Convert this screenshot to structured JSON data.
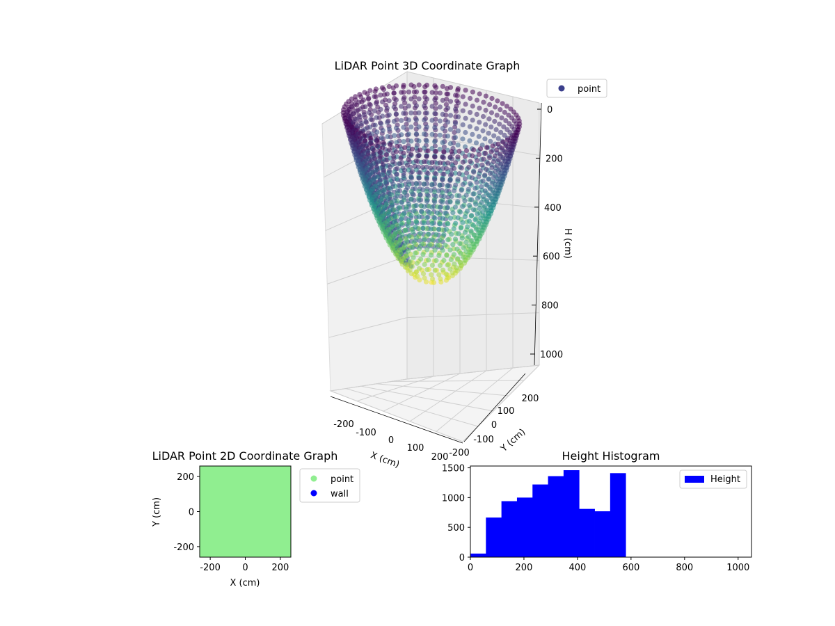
{
  "figure": {
    "panels": {
      "scatter3d": "LiDAR Point 3D Coordinate Graph",
      "scatter2d": "LiDAR Point 2D Coordinate Graph",
      "histogram": "Height Histogram"
    }
  },
  "colors": {
    "point_2d": "#90ee90",
    "wall": "#0000ff",
    "hist_bar": "#0000ff",
    "legend_point_3d": "#3b3f8c",
    "colormap": [
      "#440154",
      "#3b528b",
      "#21918c",
      "#5ec962",
      "#fde725"
    ]
  },
  "chart_data": [
    {
      "type": "scatter",
      "projection": "3d",
      "title": "LiDAR Point 3D Coordinate Graph",
      "xlabel": "X (cm)",
      "ylabel": "Y (cm)",
      "zlabel": "H (cm)",
      "x_ticks": [
        "-200",
        "-100",
        "0",
        "100",
        "200"
      ],
      "y_ticks": [
        "-200",
        "-100",
        "0",
        "100",
        "200"
      ],
      "z_ticks": [
        "0",
        "200",
        "400",
        "600",
        "800",
        "1000"
      ],
      "xlim": [
        -250,
        250
      ],
      "ylim": [
        -250,
        250
      ],
      "zlim": [
        1000,
        0
      ],
      "z_inverted": true,
      "colormap": "viridis",
      "legend": {
        "position": "top-right",
        "entries": [
          "point"
        ]
      },
      "series": [
        {
          "name": "point",
          "shape": "bowl",
          "radius_cm": 260,
          "height_range_cm": [
            0,
            590
          ],
          "description_values": {
            "rim_height": 0,
            "bottom_height": 590
          }
        }
      ]
    },
    {
      "type": "scatter",
      "title": "LiDAR Point 2D Coordinate Graph",
      "xlabel": "X (cm)",
      "ylabel": "Y (cm)",
      "x_ticks": [
        "-200",
        "0",
        "200"
      ],
      "y_ticks": [
        "200",
        "0",
        "-200"
      ],
      "xlim": [
        -260,
        260
      ],
      "ylim": [
        -260,
        260
      ],
      "legend": {
        "position": "right",
        "entries": [
          "point",
          "wall"
        ]
      },
      "series": [
        {
          "name": "point",
          "color": "#90ee90",
          "fill_extent": [
            -260,
            260,
            -260,
            260
          ]
        },
        {
          "name": "wall",
          "color": "#0000ff",
          "points": []
        }
      ]
    },
    {
      "type": "bar",
      "subtype": "histogram",
      "title": "Height Histogram",
      "legend": {
        "position": "top-right",
        "entries": [
          "Height"
        ]
      },
      "x_ticks": [
        "0",
        "200",
        "400",
        "600",
        "800",
        "1000"
      ],
      "y_ticks": [
        "0",
        "500",
        "1000",
        "1500"
      ],
      "xlim": [
        0,
        1050
      ],
      "ylim": [
        0,
        1530
      ],
      "bins": [
        {
          "start": 0,
          "end": 58,
          "value": 60
        },
        {
          "start": 58,
          "end": 116,
          "value": 665
        },
        {
          "start": 116,
          "end": 174,
          "value": 940
        },
        {
          "start": 174,
          "end": 232,
          "value": 1000
        },
        {
          "start": 232,
          "end": 290,
          "value": 1220
        },
        {
          "start": 290,
          "end": 348,
          "value": 1360
        },
        {
          "start": 348,
          "end": 406,
          "value": 1460
        },
        {
          "start": 406,
          "end": 464,
          "value": 810
        },
        {
          "start": 464,
          "end": 522,
          "value": 770
        },
        {
          "start": 522,
          "end": 580,
          "value": 1410
        }
      ]
    }
  ]
}
